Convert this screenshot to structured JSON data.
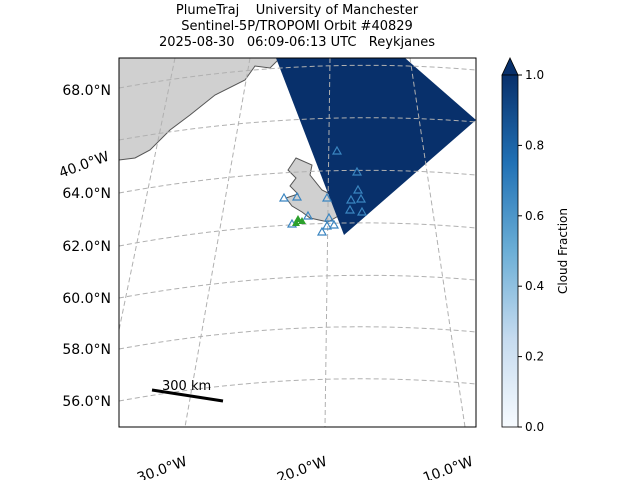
{
  "title": [
    "PlumeTraj    University of Manchester",
    "Sentinel-5P/TROPOMI Orbit #40829",
    "2025-08-30   06:09-06:13 UTC   Reykjanes"
  ],
  "latitude_labels": [
    "68.0°N",
    "64.0°N",
    "62.0°N",
    "60.0°N",
    "58.0°N",
    "56.0°N"
  ],
  "longitude_labels": [
    "40.0°W",
    "30.0°W",
    "20.0°W",
    "10.0°W"
  ],
  "scale_bar": {
    "label": "300 km"
  },
  "colorbar": {
    "label": "Cloud Fraction",
    "lim": [
      0,
      1
    ],
    "ticks": [
      {
        "value": 0,
        "label": "0.0"
      },
      {
        "value": 0.2,
        "label": "0.2"
      },
      {
        "value": 0.4,
        "label": "0.4"
      },
      {
        "value": 0.6,
        "label": "0.6"
      },
      {
        "value": 0.8,
        "label": "0.8"
      },
      {
        "value": 1,
        "label": "1.0"
      }
    ]
  }
}
